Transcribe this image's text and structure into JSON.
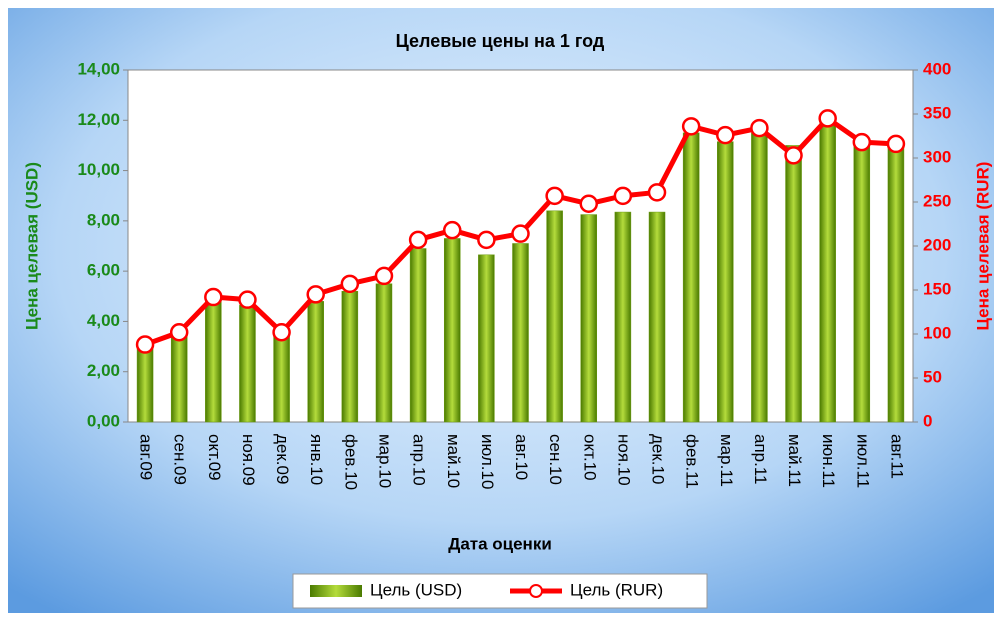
{
  "chart_data": {
    "type": "bar",
    "title": "Целевые цены на 1 год",
    "x_label": "Дата оценки",
    "y_label": "Цена целевая (USD)",
    "y2_label": "Цена целевая (RUR)",
    "categories": [
      "авг.09",
      "сен.09",
      "окт.09",
      "ноя.09",
      "дек.09",
      "янв.10",
      "фев.10",
      "мар.10",
      "апр.10",
      "май.10",
      "июл.10",
      "авг.10",
      "сен.10",
      "окт.10",
      "ноя.10",
      "дек.10",
      "фев.11",
      "мар.11",
      "апр.11",
      "май.11",
      "июн.11",
      "июл.11",
      "авг.11"
    ],
    "series": [
      {
        "name": "Цель (USD)",
        "type": "bar",
        "color": "#6a9a10",
        "axis": "y",
        "values": [
          3.0,
          3.4,
          4.8,
          4.65,
          3.6,
          4.8,
          5.2,
          5.5,
          6.9,
          7.3,
          6.65,
          7.1,
          8.4,
          8.25,
          8.35,
          8.35,
          11.5,
          11.15,
          11.5,
          11.0,
          11.9,
          11.0,
          10.9
        ]
      },
      {
        "name": "Цель (RUR)",
        "type": "line",
        "color": "#ff0000",
        "axis": "y2",
        "values": [
          88,
          102,
          142,
          139,
          102,
          145,
          157,
          166,
          207,
          218,
          207,
          214,
          257,
          248,
          257,
          261,
          336,
          326,
          334,
          303,
          345,
          318,
          316
        ]
      }
    ],
    "ylim": [
      0,
      14
    ],
    "yticks": [
      {
        "value": 0,
        "label": "0,00"
      },
      {
        "value": 2,
        "label": "2,00"
      },
      {
        "value": 4,
        "label": "4,00"
      },
      {
        "value": 6,
        "label": "6,00"
      },
      {
        "value": 8,
        "label": "8,00"
      },
      {
        "value": 10,
        "label": "10,00"
      },
      {
        "value": 12,
        "label": "12,00"
      },
      {
        "value": 14,
        "label": "14,00"
      }
    ],
    "y2lim": [
      0,
      400
    ],
    "y2ticks": [
      0,
      50,
      100,
      150,
      200,
      250,
      300,
      350,
      400
    ],
    "grid": false,
    "legend": "bottom"
  }
}
